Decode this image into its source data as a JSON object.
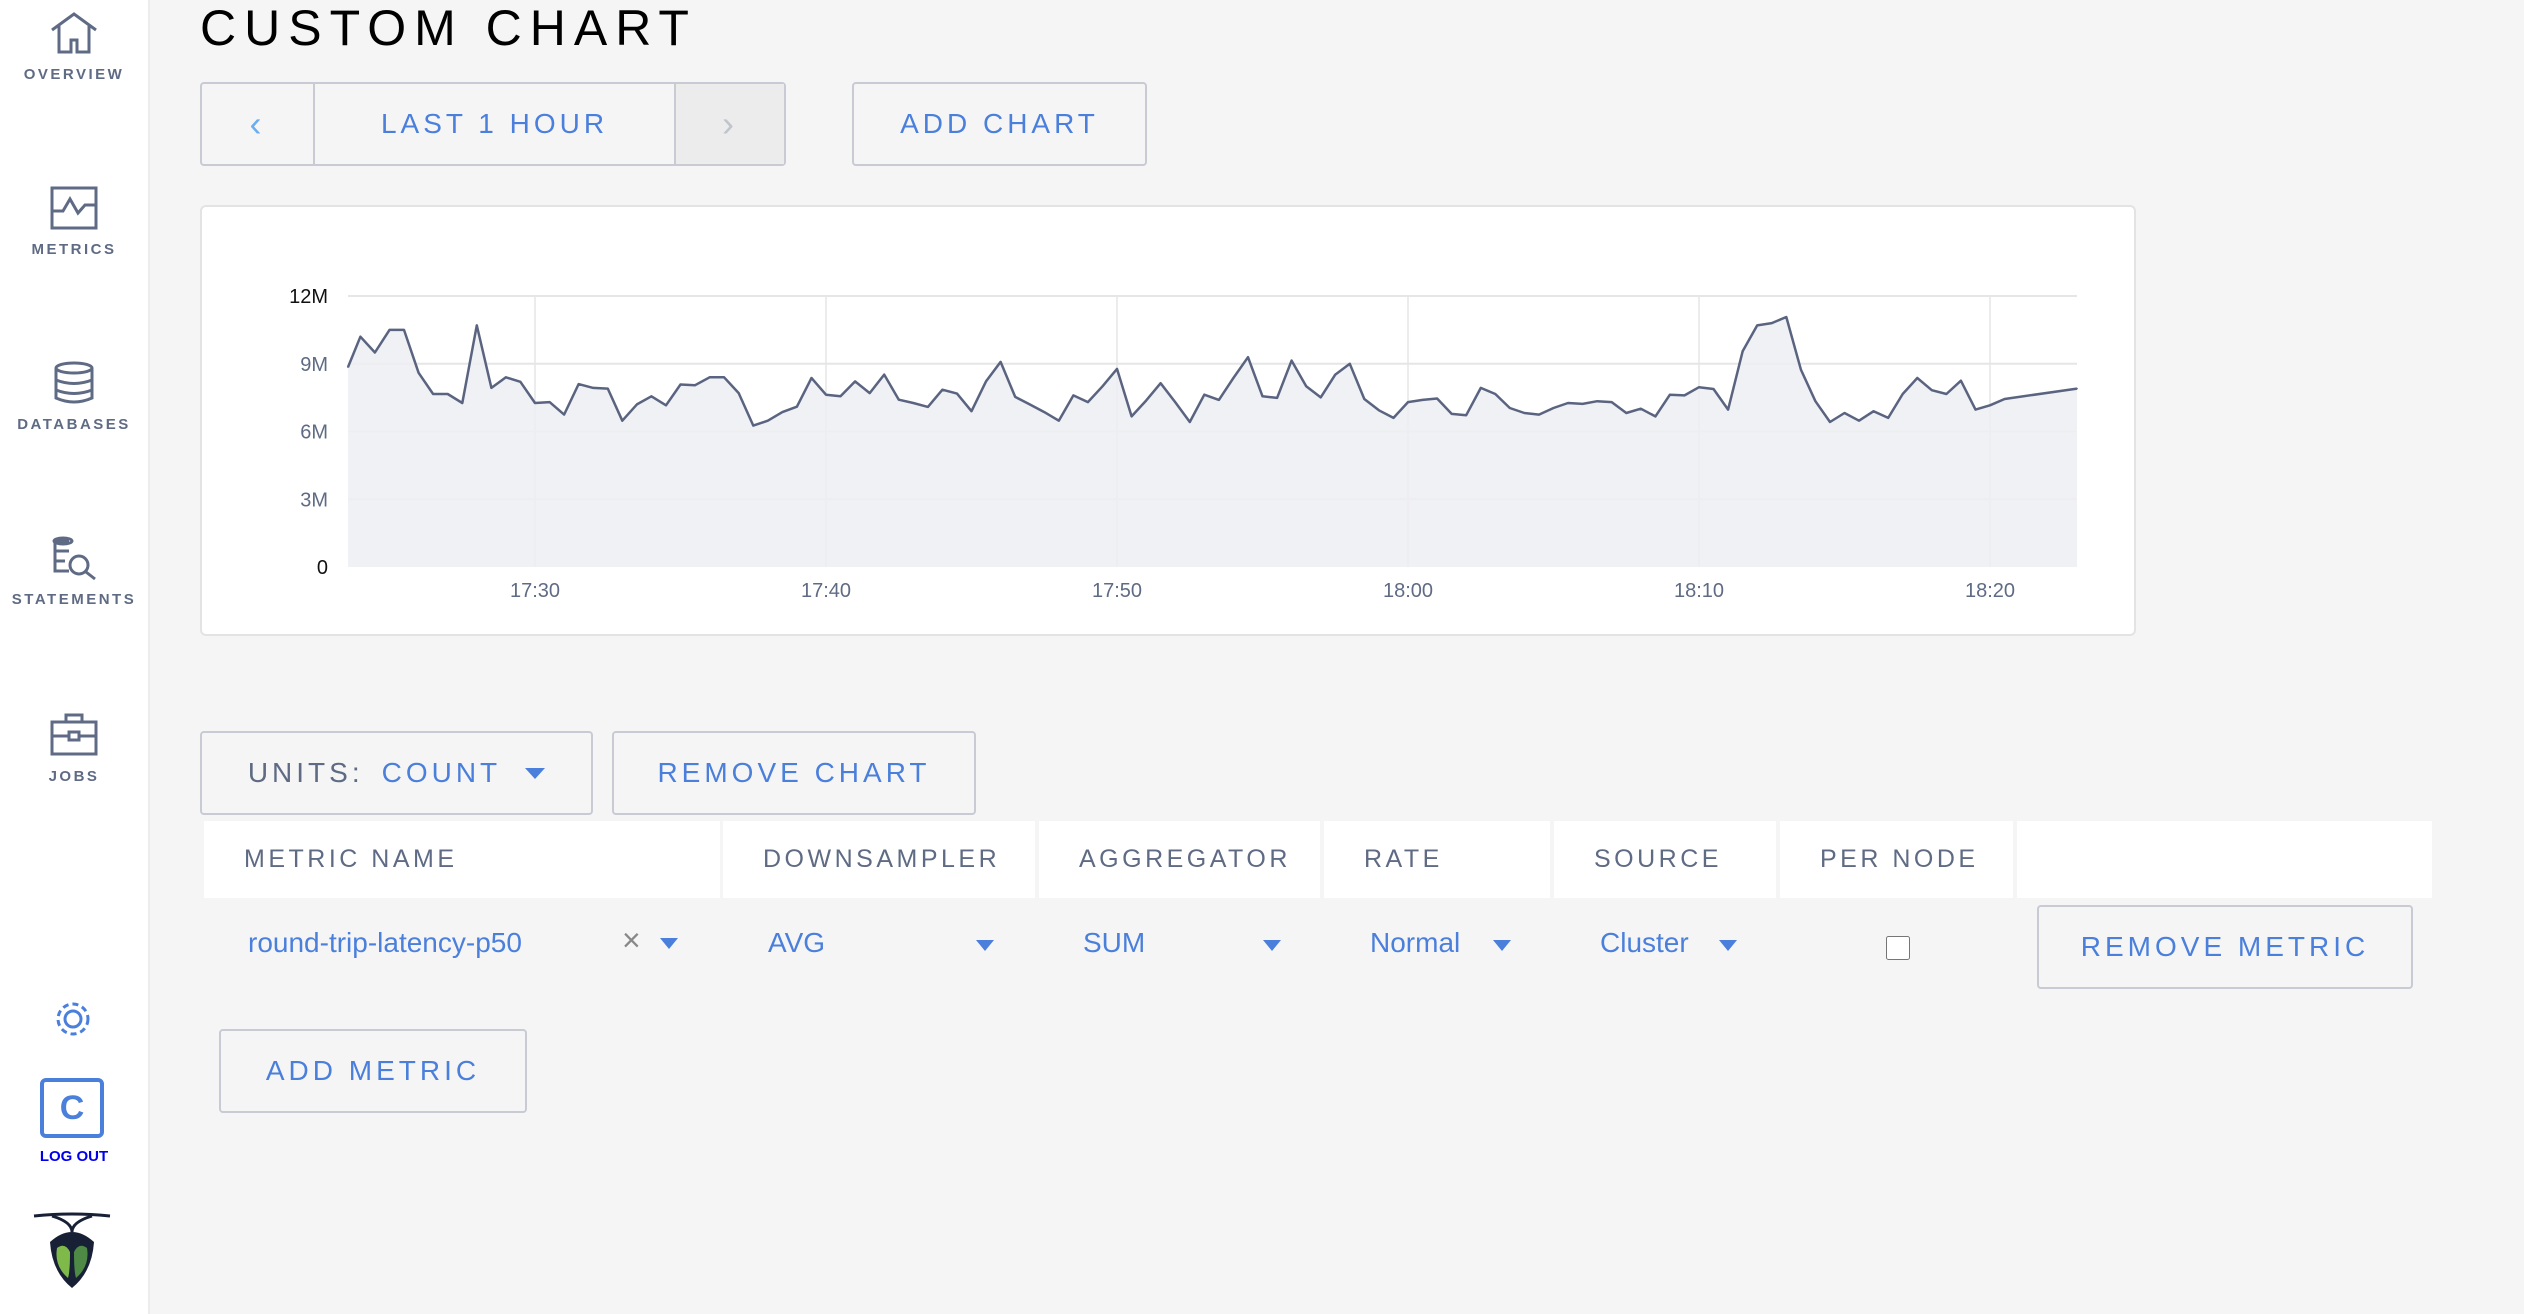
{
  "sidebar": {
    "items": [
      {
        "label": "OVERVIEW",
        "icon": "home-icon"
      },
      {
        "label": "METRICS",
        "icon": "metrics-icon"
      },
      {
        "label": "DATABASES",
        "icon": "database-icon"
      },
      {
        "label": "STATEMENTS",
        "icon": "statements-icon"
      },
      {
        "label": "JOBS",
        "icon": "briefcase-icon"
      }
    ],
    "settings_icon": "gear-icon",
    "user_initial": "C",
    "logout_label": "LOG OUT",
    "logo": "cockroach-logo"
  },
  "page": {
    "title": "CUSTOM CHART"
  },
  "toolbar": {
    "time_range": "LAST 1 HOUR",
    "prev": "‹",
    "next": "›",
    "add_chart": "ADD CHART"
  },
  "chart_controls": {
    "units_label": "UNITS:",
    "units_value": "COUNT",
    "remove_chart": "REMOVE CHART"
  },
  "chart_data": {
    "type": "area",
    "x_start": "17:23:30",
    "x_step_seconds": 30,
    "x_ticks": [
      "17:30",
      "17:40",
      "17:50",
      "18:00",
      "18:10",
      "18:20"
    ],
    "y_ticks": [
      "0",
      "3M",
      "6M",
      "9M",
      "12M"
    ],
    "ylim": [
      0,
      12000000
    ],
    "grid": true,
    "colors": {
      "line": "#5a6480",
      "fill": "#edeef2"
    },
    "values": [
      8.85,
      10.2,
      9.5,
      10.5,
      10.5,
      8.6,
      7.66,
      7.66,
      7.26,
      10.7,
      7.93,
      8.4,
      8.2,
      7.26,
      7.3,
      6.75,
      8.1,
      7.93,
      7.9,
      6.48,
      7.2,
      7.56,
      7.16,
      8.08,
      8.05,
      8.4,
      8.4,
      7.7,
      6.26,
      6.48,
      6.86,
      7.1,
      8.37,
      7.63,
      7.56,
      8.22,
      7.7,
      8.52,
      7.41,
      7.26,
      7.09,
      7.85,
      7.68,
      6.9,
      8.22,
      9.08,
      7.53,
      7.2,
      6.86,
      6.48,
      7.6,
      7.3,
      8.0,
      8.77,
      6.67,
      7.37,
      8.14,
      7.3,
      6.42,
      7.63,
      7.4,
      8.37,
      9.29,
      7.56,
      7.49,
      9.14,
      8.0,
      7.51,
      8.52,
      9.0,
      7.44,
      6.94,
      6.6,
      7.3,
      7.4,
      7.46,
      6.78,
      6.72,
      7.93,
      7.66,
      7.04,
      6.82,
      6.75,
      7.04,
      7.26,
      7.22,
      7.34,
      7.3,
      6.82,
      7.01,
      6.67,
      7.63,
      7.6,
      7.96,
      7.88,
      6.97,
      9.56,
      10.7,
      10.8,
      11.07,
      8.74,
      7.34,
      6.42,
      6.82,
      6.48,
      6.9,
      6.6,
      7.66,
      8.37,
      7.83,
      7.66,
      8.25,
      6.97,
      7.16,
      7.44,
      7.9
    ],
    "values_unit": "M"
  },
  "table": {
    "headers": [
      "METRIC NAME",
      "DOWNSAMPLER",
      "AGGREGATOR",
      "RATE",
      "SOURCE",
      "PER NODE"
    ],
    "rows": [
      {
        "metric": "round-trip-latency-p50",
        "clear": "×",
        "downsampler": "AVG",
        "aggregator": "SUM",
        "rate": "Normal",
        "source": "Cluster",
        "per_node": false,
        "remove": "REMOVE METRIC"
      }
    ]
  },
  "add_metric": "ADD METRIC",
  "colors": {
    "accent": "#4a7fdc",
    "nav": "#5f6b84"
  }
}
